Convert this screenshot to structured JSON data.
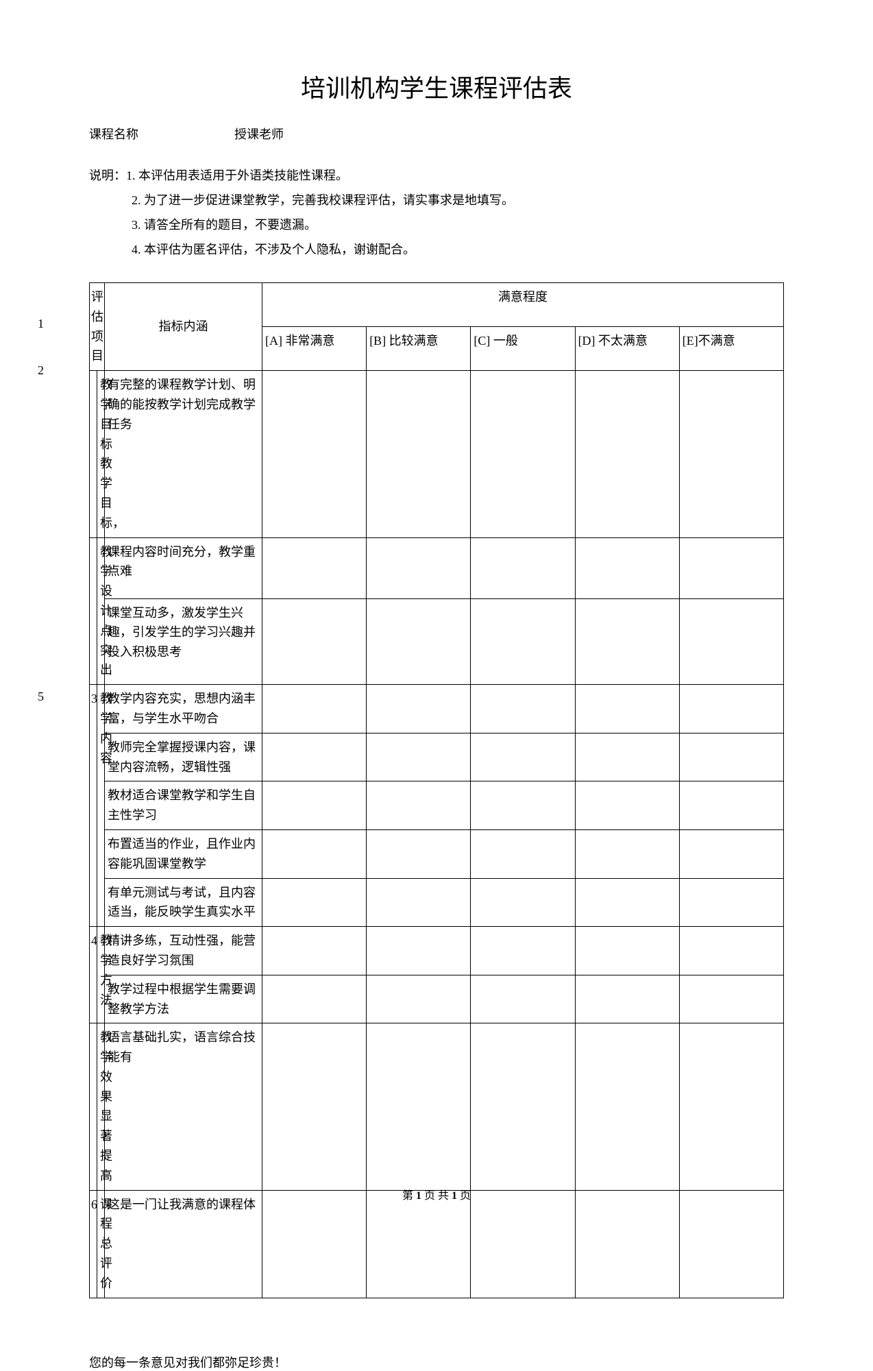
{
  "title": "培训机构学生课程评估表",
  "meta": {
    "course_label": "课程名称",
    "teacher_label": "授课老师"
  },
  "instructions": {
    "prefix": "说明：",
    "items": [
      "1. 本评估用表适用于外语类技能性课程。",
      "2. 为了进一步促进课堂教学，完善我校课程评估，请实事求是地填写。",
      "3. 请答全所有的题目，不要遗漏。",
      "4. 本评估为匿名评估，不涉及个人隐私，谢谢配合。"
    ]
  },
  "table_headers": {
    "eval_item": "评估项目",
    "indicator": "指标内涵",
    "satisfaction": "满意程度",
    "rating_a": "[A] 非常满意",
    "rating_b": "[B] 比较满意",
    "rating_c": "[C] 一般",
    "rating_d": "[D] 不太满意",
    "rating_e": "[E]不满意"
  },
  "left_numbers": {
    "n1": "1",
    "n2": "2",
    "n5": "5"
  },
  "rows": [
    {
      "num": "",
      "category": "教学目标 教学目标，",
      "indicator": "有完整的课程教学计划、明确的能按教学计划完成教学任务"
    },
    {
      "num": "",
      "category": "教学设计 点突出",
      "indicator": "课程内容时间充分，教学重点难"
    },
    {
      "num": "",
      "category": "",
      "indicator": "课堂互动多，激发学生兴趣，引发学生的学习兴趣并投入积极思考"
    },
    {
      "num": "3",
      "category": "教学内容",
      "indicator": "教学内容充实，思想内涵丰富，与学生水平吻合"
    },
    {
      "num": "",
      "category": "",
      "indicator": "教师完全掌握授课内容，课堂内容流畅，逻辑性强"
    },
    {
      "num": "",
      "category": "",
      "indicator": "教材适合课堂教学和学生自主性学习"
    },
    {
      "num": "",
      "category": "",
      "indicator": "布置适当的作业，且作业内容能巩固课堂教学"
    },
    {
      "num": "",
      "category": "",
      "indicator": "有单元测试与考试，且内容适当，能反映学生真实水平"
    },
    {
      "num": "4",
      "category": "教学方法",
      "indicator": "精讲多练，互动性强，能营造良好学习氛围"
    },
    {
      "num": "",
      "category": "",
      "indicator": "教学过程中根据学生需要调整教学方法"
    },
    {
      "num": "",
      "category": "教学效果 显著提高",
      "indicator": "语言基础扎实，语言综合技能有"
    },
    {
      "num": "6",
      "category": "课 程 总评价",
      "indicator": "这是一门让我满意的课程体"
    }
  ],
  "footnote": "您的每一条意见对我们都弥足珍贵！",
  "footer": {
    "prefix": "第 ",
    "page": "1",
    "mid": " 页 共 ",
    "total": "1",
    "suffix": " 页"
  },
  "styles": {
    "background_color": "#ffffff",
    "text_color": "#000000",
    "border_color": "#000000",
    "title_fontsize": 36,
    "body_fontsize": 18
  }
}
